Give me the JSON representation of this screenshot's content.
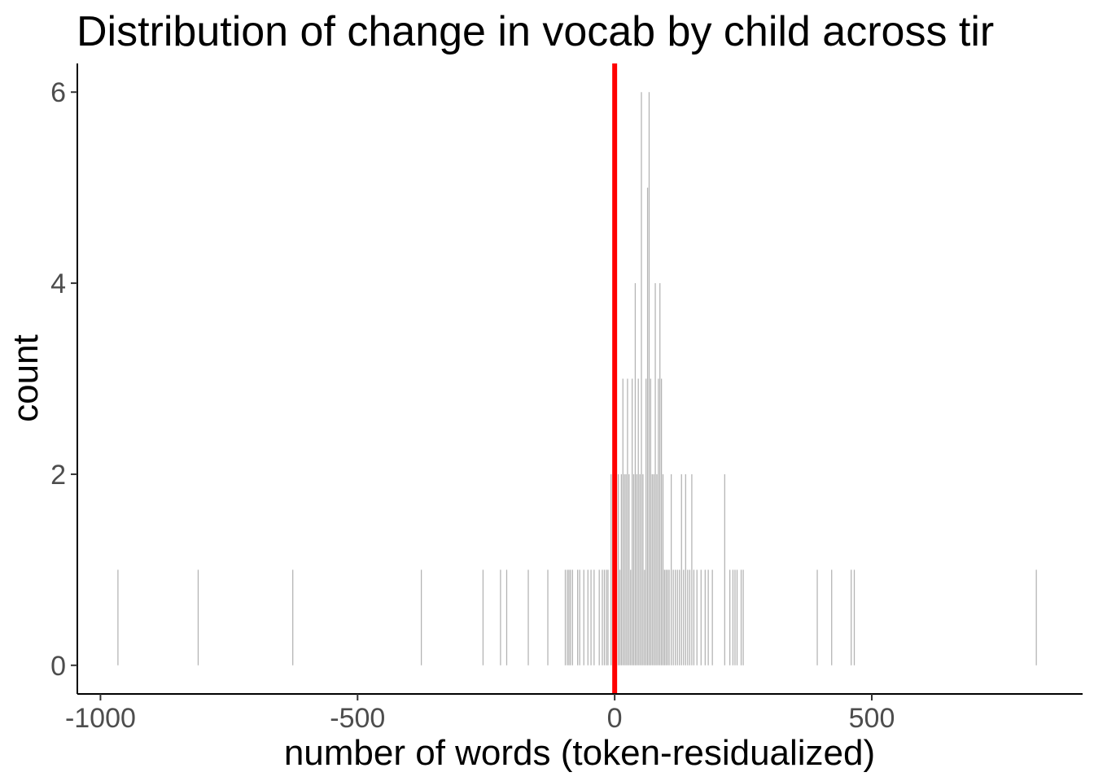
{
  "chart_data": {
    "type": "histogram",
    "title": "Distribution of change in vocab by child across tir",
    "xlabel": "number of words (token-residualized)",
    "ylabel": "count",
    "xlim": [
      -1045,
      910
    ],
    "ylim": [
      -0.3,
      6.3
    ],
    "xticks": [
      -1000,
      -500,
      0,
      500
    ],
    "xtick_labels": [
      "-1000",
      "-500",
      "0",
      "500"
    ],
    "yticks": [
      0,
      2,
      4,
      6
    ],
    "ytick_labels": [
      "0",
      "2",
      "4",
      "6"
    ],
    "bin_width": 2,
    "bar_color": "#b3b3b3",
    "reference_line": {
      "x": 0,
      "color": "#ff0000"
    },
    "grid": false,
    "bins": [
      [
        -966,
        1
      ],
      [
        -810,
        1
      ],
      [
        -626,
        1
      ],
      [
        -376,
        1
      ],
      [
        -256,
        1
      ],
      [
        -222,
        1
      ],
      [
        -210,
        1
      ],
      [
        -168,
        1
      ],
      [
        -130,
        1
      ],
      [
        -96,
        1
      ],
      [
        -92,
        1
      ],
      [
        -89,
        1
      ],
      [
        -86,
        1
      ],
      [
        -82,
        1
      ],
      [
        -72,
        1
      ],
      [
        -68,
        1
      ],
      [
        -60,
        1
      ],
      [
        -52,
        1
      ],
      [
        -46,
        1
      ],
      [
        -40,
        1
      ],
      [
        -30,
        1
      ],
      [
        -24,
        1
      ],
      [
        -20,
        1
      ],
      [
        -16,
        1
      ],
      [
        -13,
        1
      ],
      [
        -7,
        2
      ],
      [
        -3,
        1
      ],
      [
        3,
        1
      ],
      [
        7,
        2
      ],
      [
        10,
        1
      ],
      [
        13,
        2
      ],
      [
        16,
        3
      ],
      [
        19,
        2
      ],
      [
        22,
        2
      ],
      [
        25,
        3
      ],
      [
        28,
        2
      ],
      [
        31,
        1
      ],
      [
        34,
        3
      ],
      [
        37,
        2
      ],
      [
        40,
        4
      ],
      [
        43,
        2
      ],
      [
        46,
        3
      ],
      [
        49,
        2
      ],
      [
        52,
        6
      ],
      [
        55,
        2
      ],
      [
        58,
        1
      ],
      [
        61,
        3
      ],
      [
        64,
        5
      ],
      [
        67,
        6
      ],
      [
        70,
        3
      ],
      [
        73,
        2
      ],
      [
        76,
        2
      ],
      [
        79,
        4
      ],
      [
        82,
        2
      ],
      [
        85,
        3
      ],
      [
        88,
        4
      ],
      [
        91,
        3
      ],
      [
        94,
        2
      ],
      [
        97,
        1
      ],
      [
        100,
        1
      ],
      [
        103,
        1
      ],
      [
        106,
        1
      ],
      [
        110,
        2
      ],
      [
        114,
        1
      ],
      [
        118,
        1
      ],
      [
        122,
        1
      ],
      [
        126,
        1
      ],
      [
        130,
        2
      ],
      [
        134,
        1
      ],
      [
        138,
        2
      ],
      [
        142,
        1
      ],
      [
        146,
        1
      ],
      [
        150,
        2
      ],
      [
        154,
        1
      ],
      [
        160,
        1
      ],
      [
        168,
        1
      ],
      [
        176,
        1
      ],
      [
        182,
        1
      ],
      [
        190,
        1
      ],
      [
        214,
        2
      ],
      [
        224,
        1
      ],
      [
        230,
        1
      ],
      [
        234,
        1
      ],
      [
        238,
        1
      ],
      [
        246,
        1
      ],
      [
        250,
        1
      ],
      [
        394,
        1
      ],
      [
        422,
        1
      ],
      [
        460,
        1
      ],
      [
        466,
        1
      ],
      [
        820,
        1
      ]
    ]
  }
}
